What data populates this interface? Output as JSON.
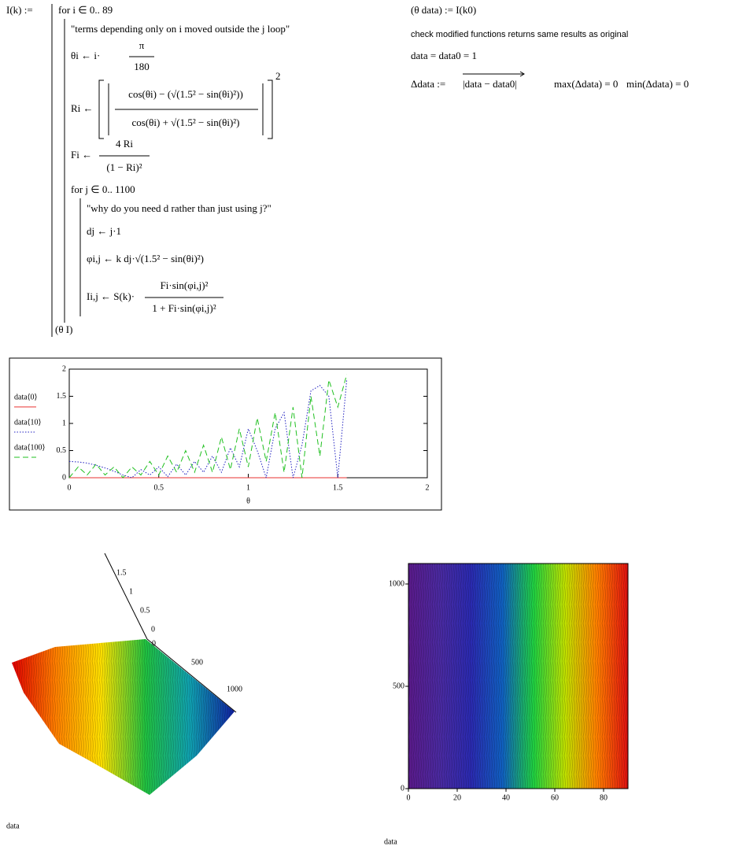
{
  "worksheet": {
    "def_name": "I(k) :=",
    "for_i": "for  i ∈ 0.. 89",
    "comment_i": "\"terms depending only on i moved outside the j loop\"",
    "theta_lhs": "θi ← i·",
    "theta_num": "π",
    "theta_den": "180",
    "r_lhs": "Ri ←",
    "r_num": "cos(θi) − (√(1.5² − sin(θi)²))",
    "r_den": "cos(θi) + √(1.5² − sin(θi)²)",
    "r_exp": "2",
    "f_lhs": "Fi ←",
    "f_num": "4 Ri",
    "f_den": "(1 − Ri)²",
    "for_j": "for  j ∈ 0.. 1100",
    "comment_j": "\"why do you need d rather than just using j?\"",
    "d_line": "dj ← j·1",
    "phi_line": "φi,j ← k dj·√(1.5² − sin(θi)²)",
    "i_lhs": "Ii,j ← S(k)·",
    "i_num": "Fi·sin(φi,j)²",
    "i_den": "1 + Fi·sin(φi,j)²",
    "result": "(θ  I)",
    "call": "(θ  data) := I(k0)",
    "note": "check modified functions returns same results as original",
    "compare": "data = data0 = 1",
    "delta_def": "Δdata :=",
    "delta_expr": "|data − data0|",
    "max": "max(Δdata) = 0",
    "min": "min(Δdata) = 0"
  },
  "chart_data": [
    {
      "type": "line",
      "xlabel": "θ",
      "x": [
        0,
        0.05,
        0.1,
        0.15,
        0.2,
        0.25,
        0.3,
        0.35,
        0.4,
        0.45,
        0.5,
        0.55,
        0.6,
        0.65,
        0.7,
        0.75,
        0.8,
        0.85,
        0.9,
        0.95,
        1,
        1.05,
        1.1,
        1.15,
        1.2,
        1.25,
        1.3,
        1.35,
        1.4,
        1.45,
        1.5,
        1.55
      ],
      "series": [
        {
          "name": "data⟨0⟩",
          "color": "#e8322f",
          "dash": "solid",
          "values": [
            0,
            0,
            0,
            0,
            0,
            0,
            0,
            0,
            0,
            0,
            0,
            0,
            0,
            0,
            0,
            0,
            0,
            0,
            0,
            0,
            0,
            0,
            0,
            0,
            0,
            0,
            0,
            0,
            0,
            0,
            0,
            0
          ]
        },
        {
          "name": "data⟨10⟩",
          "color": "#2020c0",
          "dash": "dotted",
          "values": [
            0.3,
            0.29,
            0.27,
            0.23,
            0.18,
            0.12,
            0.05,
            0,
            0.15,
            0.05,
            0.2,
            0.02,
            0.25,
            0.05,
            0.3,
            0.1,
            0.4,
            0.1,
            0.55,
            0.2,
            0.9,
            0.5,
            0,
            0.9,
            1.2,
            0,
            0.6,
            1.6,
            1.7,
            1.5,
            0,
            1.8
          ]
        },
        {
          "name": "data⟨100⟩",
          "color": "#20c020",
          "dash": "dashed",
          "values": [
            0,
            0.2,
            0.05,
            0.25,
            0.05,
            0.2,
            0,
            0.2,
            0.05,
            0.3,
            0.05,
            0.4,
            0.1,
            0.5,
            0.1,
            0.6,
            0.1,
            0.75,
            0.15,
            0.9,
            0.2,
            1.1,
            0.3,
            1.2,
            0.1,
            1.3,
            0,
            1.5,
            0.4,
            1.8,
            1.3,
            1.9
          ]
        }
      ],
      "xlim": [
        0,
        2
      ],
      "xticks": [
        0,
        0.5,
        1,
        1.5,
        2
      ],
      "ylim": [
        0,
        2
      ],
      "yticks": [
        0,
        0.5,
        1,
        1.5,
        2
      ]
    },
    {
      "type": "surface",
      "caption": "data",
      "axis1_ticks": [
        1.5,
        1,
        0.5,
        0
      ],
      "axis2_ticks": [
        0,
        500,
        1000
      ],
      "colormap": [
        "#e00000",
        "#ff8000",
        "#ffe000",
        "#20c040",
        "#10a0b0",
        "#1020a0"
      ]
    },
    {
      "type": "contour",
      "caption": "data",
      "xlim": [
        0,
        90
      ],
      "xticks": [
        0,
        20,
        40,
        60,
        80
      ],
      "ylim": [
        0,
        1100
      ],
      "yticks": [
        0,
        500,
        1000
      ],
      "colormap": [
        "#5a1a8a",
        "#4a2aa0",
        "#2a2ab0",
        "#1060c0",
        "#20d040",
        "#c0e000",
        "#ff8000",
        "#e01010"
      ]
    }
  ]
}
